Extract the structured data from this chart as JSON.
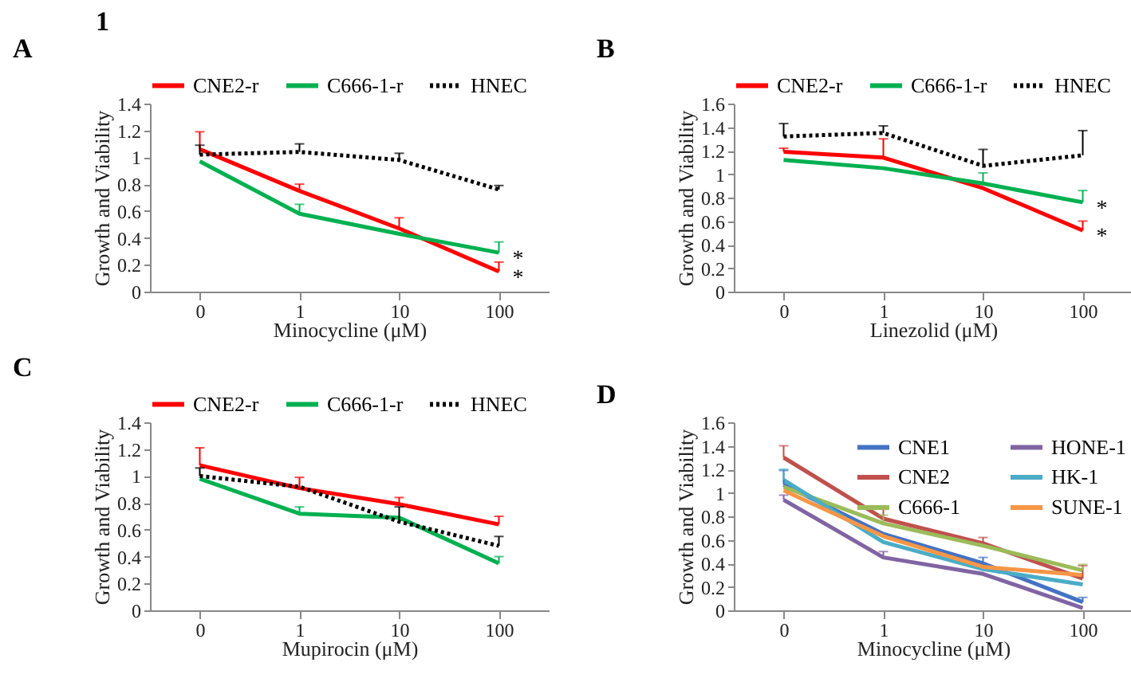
{
  "chart_data": [
    {
      "type": "line",
      "title": "A",
      "xlabel": "Minocycline (μM)",
      "ylabel": "Growth and Viability",
      "categories": [
        "0",
        "1",
        "10",
        "100"
      ],
      "ylim": [
        0,
        1.4
      ],
      "yticks": [
        0,
        0.2,
        0.4,
        0.6,
        0.8,
        1,
        1.2,
        1.4
      ],
      "grid": false,
      "legend": "top",
      "annotations": [
        "1",
        {
          "text": "*",
          "x": "100",
          "y": 0.29
        },
        {
          "text": "*",
          "x": "100",
          "y": 0.15
        }
      ],
      "series": [
        {
          "name": "CNE2-r",
          "color": "#ff0000",
          "line_style": "solid",
          "values": [
            1.06,
            0.75,
            0.47,
            0.15
          ],
          "errors": [
            [
              1.06,
              1.19
            ],
            [
              0.75,
              0.8
            ],
            [
              0.47,
              0.55
            ],
            [
              0.15,
              0.22
            ]
          ]
        },
        {
          "name": "C666-1-r",
          "color": "#00b050",
          "line_style": "solid",
          "values": [
            0.97,
            0.58,
            0.43,
            0.29
          ],
          "errors": [
            null,
            [
              0.58,
              0.65
            ],
            null,
            [
              0.29,
              0.37
            ]
          ]
        },
        {
          "name": "HNEC",
          "color": "#000000",
          "line_style": "dotted",
          "values": [
            1.02,
            1.04,
            0.98,
            0.76
          ],
          "errors": [
            [
              1.02,
              1.09
            ],
            [
              1.04,
              1.1
            ],
            [
              0.98,
              1.03
            ],
            [
              0.76,
              0.79
            ]
          ]
        }
      ]
    },
    {
      "type": "line",
      "title": "B",
      "xlabel": "Linezolid (μM)",
      "ylabel": "Growth and Viability",
      "categories": [
        "0",
        "1",
        "10",
        "100"
      ],
      "ylim": [
        0,
        1.6
      ],
      "yticks": [
        0,
        0.2,
        0.4,
        0.6,
        0.8,
        1,
        1.2,
        1.4,
        1.6
      ],
      "grid": false,
      "legend": "top",
      "annotations": [
        {
          "text": "*",
          "x": "100",
          "y": 0.76
        },
        {
          "text": "*",
          "x": "100",
          "y": 0.52
        }
      ],
      "series": [
        {
          "name": "CNE2-r",
          "color": "#ff0000",
          "line_style": "solid",
          "values": [
            1.19,
            1.14,
            0.88,
            0.52
          ],
          "errors": [
            [
              1.19,
              1.22
            ],
            [
              1.14,
              1.3
            ],
            null,
            [
              0.52,
              0.6
            ]
          ]
        },
        {
          "name": "C666-1-r",
          "color": "#00b050",
          "line_style": "solid",
          "values": [
            1.12,
            1.05,
            0.92,
            0.76
          ],
          "errors": [
            null,
            null,
            [
              0.92,
              1.01
            ],
            [
              0.76,
              0.86
            ]
          ]
        },
        {
          "name": "HNEC",
          "color": "#000000",
          "line_style": "dotted",
          "values": [
            1.32,
            1.35,
            1.07,
            1.16
          ],
          "errors": [
            [
              1.32,
              1.43
            ],
            [
              1.35,
              1.41
            ],
            [
              1.07,
              1.21
            ],
            [
              1.16,
              1.37
            ]
          ]
        }
      ]
    },
    {
      "type": "line",
      "title": "C",
      "xlabel": "Mupirocin (μM)",
      "ylabel": "Growth and Viability",
      "categories": [
        "0",
        "1",
        "10",
        "100"
      ],
      "ylim": [
        0,
        1.4
      ],
      "yticks": [
        0,
        0.2,
        0.4,
        0.6,
        0.8,
        1,
        1.2,
        1.4
      ],
      "grid": false,
      "legend": "top",
      "series": [
        {
          "name": "CNE2-r",
          "color": "#ff0000",
          "line_style": "solid",
          "values": [
            1.08,
            0.91,
            0.79,
            0.64
          ],
          "errors": [
            [
              1.08,
              1.21
            ],
            [
              0.91,
              0.99
            ],
            [
              0.79,
              0.84
            ],
            [
              0.64,
              0.7
            ]
          ]
        },
        {
          "name": "C666-1-r",
          "color": "#00b050",
          "line_style": "solid",
          "values": [
            0.98,
            0.72,
            0.69,
            0.35
          ],
          "errors": [
            null,
            [
              0.72,
              0.77
            ],
            null,
            [
              0.35,
              0.4
            ]
          ]
        },
        {
          "name": "HNEC",
          "color": "#000000",
          "line_style": "dotted",
          "values": [
            1.0,
            0.92,
            0.66,
            0.48
          ],
          "errors": [
            [
              1.0,
              1.06
            ],
            null,
            [
              0.66,
              0.77
            ],
            [
              0.48,
              0.55
            ]
          ]
        }
      ]
    },
    {
      "type": "line",
      "title": "D",
      "xlabel": "Minocycline (μM)",
      "ylabel": "Growth and Viability",
      "categories": [
        "0",
        "1",
        "10",
        "100"
      ],
      "ylim": [
        0,
        1.6
      ],
      "yticks": [
        0,
        0.2,
        0.4,
        0.6,
        0.8,
        1,
        1.2,
        1.4,
        1.6
      ],
      "grid": false,
      "legend": "top right",
      "series": [
        {
          "name": "CNE1",
          "color": "#4472c4",
          "line_style": "solid",
          "values": [
            1.07,
            0.65,
            0.4,
            0.07
          ],
          "errors": [
            [
              1.07,
              1.19
            ],
            null,
            [
              0.4,
              0.45
            ],
            [
              0.07,
              0.11
            ]
          ]
        },
        {
          "name": "CNE2",
          "color": "#c0504d",
          "line_style": "solid",
          "values": [
            1.3,
            0.78,
            0.57,
            0.27
          ],
          "errors": [
            [
              1.3,
              1.4
            ],
            [
              0.78,
              0.86
            ],
            [
              0.57,
              0.62
            ],
            [
              0.27,
              0.38
            ]
          ]
        },
        {
          "name": "C666-1",
          "color": "#9bbb59",
          "line_style": "solid",
          "values": [
            1.05,
            0.74,
            0.55,
            0.34
          ],
          "errors": [
            null,
            [
              0.74,
              0.81
            ],
            null,
            [
              0.34,
              0.39
            ]
          ]
        },
        {
          "name": "HONE-1",
          "color": "#8064a2",
          "line_style": "solid",
          "values": [
            0.94,
            0.45,
            0.31,
            0.02
          ],
          "errors": [
            [
              0.94,
              0.98
            ],
            [
              0.45,
              0.5
            ],
            null,
            null
          ]
        },
        {
          "name": "HK-1",
          "color": "#4bacc6",
          "line_style": "solid",
          "values": [
            1.11,
            0.58,
            0.35,
            0.22
          ],
          "errors": [
            [
              1.11,
              1.2
            ],
            null,
            null,
            null
          ]
        },
        {
          "name": "SUNE-1",
          "color": "#f79646",
          "line_style": "solid",
          "values": [
            1.02,
            0.63,
            0.37,
            0.3
          ],
          "errors": [
            null,
            null,
            null,
            null
          ]
        }
      ]
    }
  ]
}
